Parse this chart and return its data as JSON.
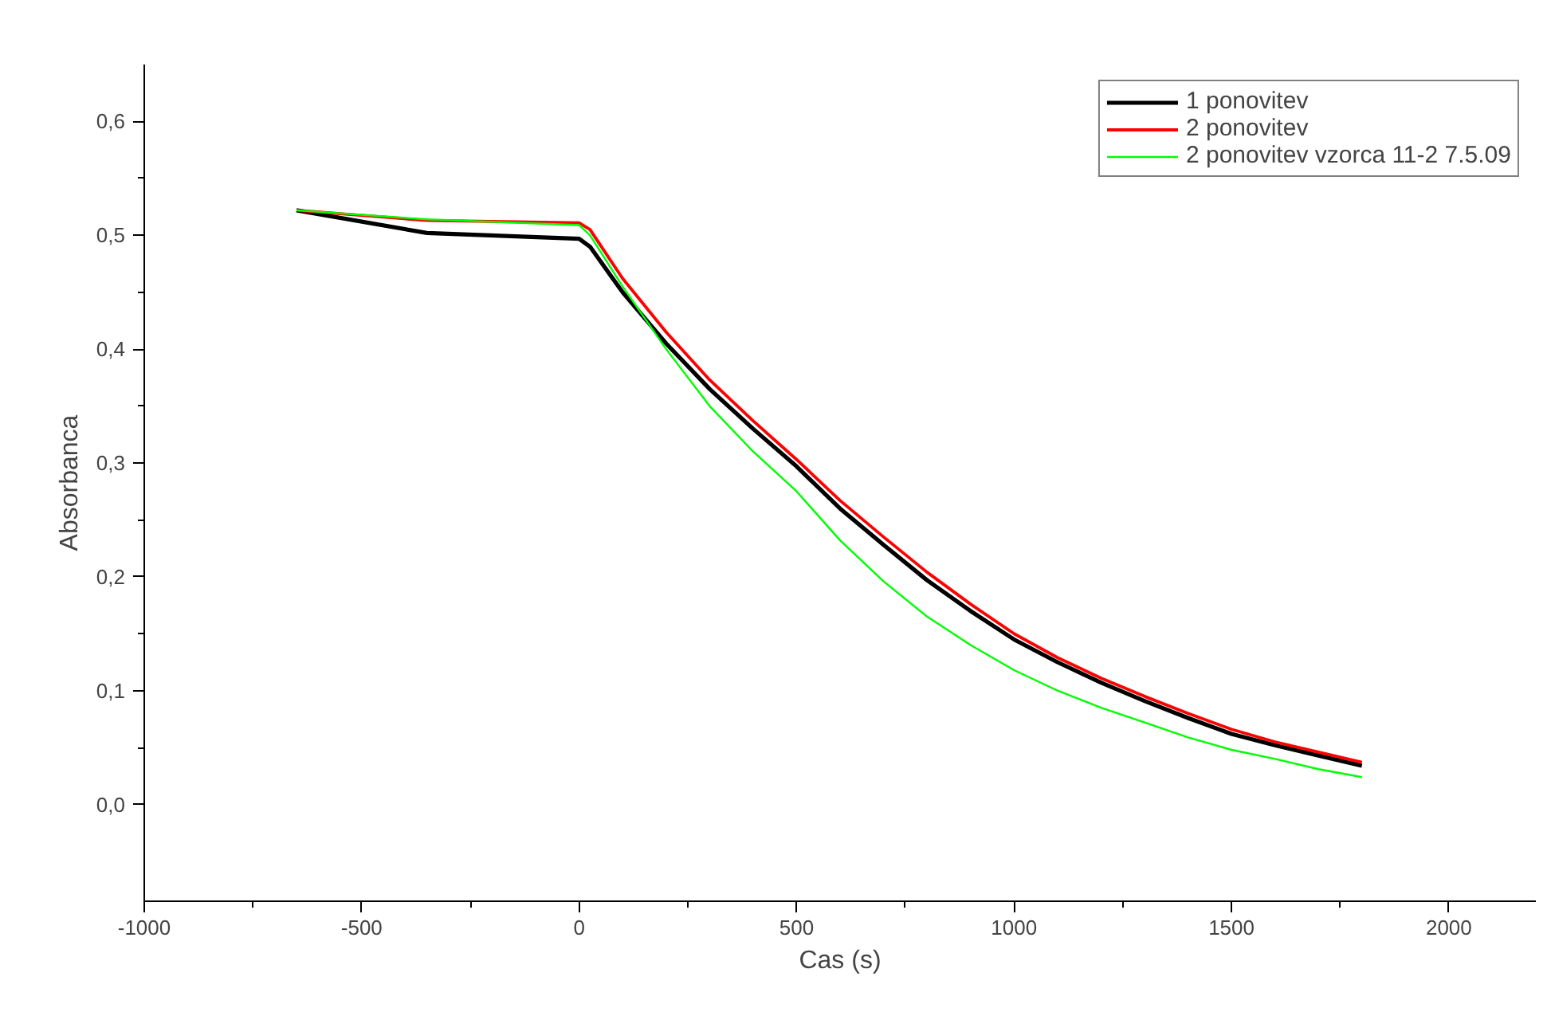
{
  "chart_data": {
    "type": "line",
    "xlabel": "Cas (s)",
    "ylabel": "Absorbanca",
    "xlim": [
      -1000,
      2200
    ],
    "ylim": [
      -0.085,
      0.65
    ],
    "xticks": [
      -1000,
      -500,
      0,
      500,
      1000,
      1500,
      2000
    ],
    "yticks": [
      {
        "value": 0.0,
        "label": "0,0"
      },
      {
        "value": 0.1,
        "label": "0,1"
      },
      {
        "value": 0.2,
        "label": "0,2"
      },
      {
        "value": 0.3,
        "label": "0,3"
      },
      {
        "value": 0.4,
        "label": "0,4"
      },
      {
        "value": 0.5,
        "label": "0,5"
      },
      {
        "value": 0.6,
        "label": "0,6"
      }
    ],
    "x": [
      -650,
      -350,
      0,
      25,
      100,
      200,
      300,
      400,
      500,
      600,
      700,
      800,
      900,
      1000,
      1100,
      1200,
      1300,
      1400,
      1500,
      1600,
      1700,
      1800
    ],
    "series": [
      {
        "name": "1 ponovitev",
        "color": "#000000",
        "values": [
          0.522,
          0.502,
          0.497,
          0.49,
          0.45,
          0.405,
          0.365,
          0.33,
          0.297,
          0.26,
          0.228,
          0.197,
          0.17,
          0.145,
          0.125,
          0.107,
          0.091,
          0.076,
          0.062,
          0.052,
          0.043,
          0.034
        ]
      },
      {
        "name": "2 ponovitev",
        "color": "#ff0000",
        "values": [
          0.522,
          0.513,
          0.511,
          0.505,
          0.462,
          0.415,
          0.373,
          0.337,
          0.303,
          0.267,
          0.235,
          0.204,
          0.176,
          0.15,
          0.129,
          0.111,
          0.095,
          0.08,
          0.066,
          0.055,
          0.046,
          0.037
        ]
      },
      {
        "name": "2 ponovitev vzorca 11-2 7.5.09",
        "color": "#00ff00",
        "values": [
          0.522,
          0.514,
          0.509,
          0.5,
          0.455,
          0.4,
          0.35,
          0.31,
          0.275,
          0.232,
          0.196,
          0.165,
          0.14,
          0.118,
          0.1,
          0.085,
          0.072,
          0.059,
          0.048,
          0.04,
          0.031,
          0.024
        ]
      }
    ],
    "legend": "top right",
    "grid": false,
    "marker": "none",
    "line_style": "solid"
  }
}
